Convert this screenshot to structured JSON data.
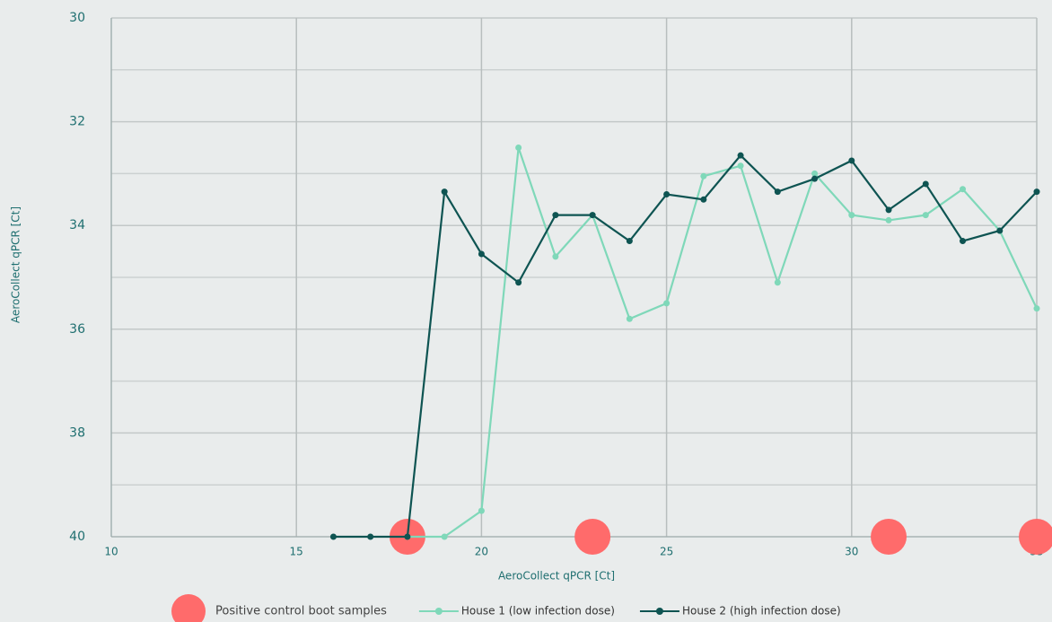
{
  "chart_data": {
    "type": "line",
    "xlabel": "AeroCollect qPCR [Ct]",
    "ylabel": "AeroCollect qPCR [Ct]",
    "xlim": [
      10,
      35
    ],
    "xticks": [
      10,
      15,
      20,
      25,
      30,
      35
    ],
    "ylim": [
      40,
      30
    ],
    "yticks": [
      30,
      32,
      34,
      36,
      38,
      40
    ],
    "yminor": [
      31,
      33,
      35,
      37,
      39
    ],
    "grid": true,
    "legend": "bottom",
    "series": [
      {
        "name": "Positive control boot samples",
        "color": "#ff6b6b",
        "style": "marker",
        "x": [
          18,
          23,
          31,
          35
        ],
        "values": [
          40,
          40,
          40,
          40
        ]
      },
      {
        "name": "House 1 (low infection dose)",
        "color": "#7fd8b9",
        "style": "line",
        "x": [
          18,
          19,
          20,
          21,
          22,
          23,
          24,
          25,
          26,
          27,
          28,
          29,
          30,
          31,
          32,
          33,
          34,
          35
        ],
        "values": [
          40,
          40,
          39.5,
          32.5,
          34.6,
          33.8,
          35.8,
          35.5,
          33.05,
          32.85,
          35.1,
          33.0,
          33.8,
          33.9,
          33.8,
          33.3,
          34.1,
          35.6
        ]
      },
      {
        "name": "House 2 (high infection dose)",
        "color": "#0e5452",
        "style": "line",
        "x": [
          16,
          17,
          18,
          19,
          20,
          21,
          22,
          23,
          24,
          25,
          26,
          27,
          28,
          29,
          30,
          31,
          32,
          33,
          34,
          35
        ],
        "values": [
          40,
          40,
          40,
          33.35,
          34.55,
          35.1,
          33.8,
          33.8,
          34.3,
          33.4,
          33.5,
          32.65,
          33.35,
          33.1,
          32.75,
          33.7,
          33.2,
          34.3,
          34.1,
          33.35
        ]
      }
    ]
  }
}
